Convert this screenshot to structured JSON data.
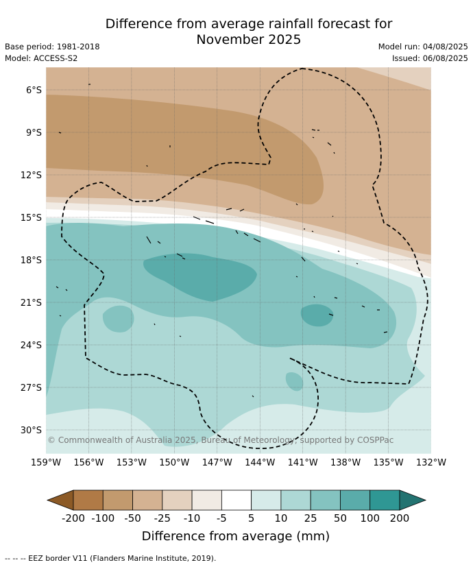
{
  "title_line1": "Difference from average rainfall forecast for",
  "title_line2": "November 2025",
  "base_period": "Base period: 1981-2018",
  "model": "Model: ACCESS-S2",
  "model_run": "Model run: 04/08/2025",
  "issued": "Issued: 06/08/2025",
  "latitude_ticks": [
    "6°S",
    "9°S",
    "12°S",
    "15°S",
    "18°S",
    "21°S",
    "24°S",
    "27°S",
    "30°S"
  ],
  "longitude_ticks": [
    "159°W",
    "156°W",
    "153°W",
    "150°W",
    "147°W",
    "144°W",
    "141°W",
    "138°W",
    "135°W",
    "132°W"
  ],
  "copyright": "© Commonwealth of Australia 2025, Bureau of Meteorology, supported by COSPPac",
  "colorbar": {
    "title": "Difference from average (mm)",
    "tick_labels": [
      "-200",
      "-100",
      "-50",
      "-25",
      "-10",
      "-5",
      "5",
      "10",
      "25",
      "50",
      "100",
      "200"
    ],
    "colors": [
      "#8c5a26",
      "#b07a46",
      "#c29a6e",
      "#d4b292",
      "#e4d1bf",
      "#f1ebe4",
      "#ffffff",
      "#d6ebe9",
      "#add8d5",
      "#84c3c0",
      "#5aacaa",
      "#2f9794",
      "#237371"
    ]
  },
  "footnote": "--  --  -- EEZ border V11 (Flanders Marine Institute, 2019)."
}
